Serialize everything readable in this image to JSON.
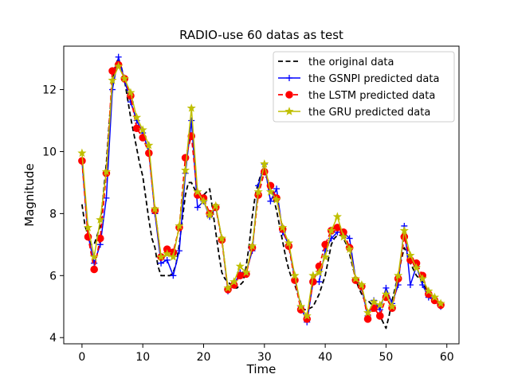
{
  "chart_data": {
    "type": "line",
    "title": "RADIO-use 60 datas as test",
    "xlabel": "Time",
    "ylabel": "Magnitude",
    "xlim": [
      -3,
      62
    ],
    "ylim": [
      3.8,
      13.4
    ],
    "xticks": [
      0,
      10,
      20,
      30,
      40,
      50,
      60
    ],
    "yticks": [
      4,
      6,
      8,
      10,
      12
    ],
    "grid": false,
    "legend_position": "upper-right",
    "series": [
      {
        "name": "the original data",
        "color": "#000000",
        "line_style": "dashed",
        "marker": "none",
        "x": [
          0,
          0.5,
          1,
          1.5,
          2,
          2.5,
          3,
          3.5,
          4,
          4.5,
          5,
          5.5,
          6,
          6.5,
          7,
          7.5,
          8,
          8.5,
          9,
          9.5,
          10,
          10.5,
          11,
          11.5,
          12,
          12.5,
          13,
          13.5,
          14,
          14.5,
          15,
          15.5,
          16,
          16.5,
          17,
          17.5,
          18,
          18.5,
          19,
          19.5,
          20,
          20.5,
          21,
          21.5,
          22,
          22.5,
          23,
          23.5,
          24,
          24.5,
          25,
          25.5,
          26,
          26.5,
          27,
          27.5,
          28,
          28.5,
          29,
          29.5,
          30,
          30.5,
          31,
          31.5,
          32,
          32.5,
          33,
          33.5,
          34,
          34.5,
          35,
          35.5,
          36,
          36.5,
          37,
          37.5,
          38,
          38.5,
          39,
          39.5,
          40,
          40.5,
          41,
          41.5,
          42,
          42.5,
          43,
          43.5,
          44,
          44.5,
          45,
          45.5,
          46,
          46.5,
          47,
          47.5,
          48,
          48.5,
          49,
          49.5,
          50,
          50.5,
          51,
          51.5,
          52,
          52.5,
          53,
          53.5,
          54,
          54.5,
          55,
          55.5,
          56,
          56.5,
          57,
          57.5,
          58,
          58.5,
          59
        ],
        "y": [
          8.3,
          7.6,
          7.3,
          7.0,
          7.0,
          7.3,
          7.6,
          8.6,
          9.6,
          11.0,
          12.2,
          12.8,
          13.0,
          12.7,
          12.3,
          11.7,
          11.1,
          10.6,
          10.1,
          9.6,
          9.2,
          8.5,
          7.8,
          7.2,
          6.9,
          6.3,
          6.0,
          6.0,
          6.0,
          6.0,
          6.1,
          6.4,
          7.0,
          7.8,
          8.6,
          9.0,
          9.0,
          8.8,
          8.6,
          8.6,
          8.6,
          8.7,
          8.8,
          8.1,
          7.4,
          6.7,
          6.1,
          5.9,
          5.8,
          5.7,
          5.6,
          5.6,
          5.7,
          5.8,
          6.3,
          7.0,
          7.9,
          8.6,
          9.0,
          9.3,
          9.3,
          9.1,
          8.9,
          8.5,
          8.1,
          7.6,
          7.1,
          6.6,
          6.2,
          5.9,
          5.7,
          5.4,
          5.1,
          4.9,
          4.9,
          4.95,
          5.0,
          5.2,
          5.4,
          5.7,
          6.0,
          6.5,
          7.0,
          7.2,
          7.3,
          7.3,
          7.2,
          7.0,
          6.7,
          6.3,
          5.9,
          5.6,
          5.4,
          5.2,
          5.2,
          5.1,
          5.0,
          4.9,
          4.7,
          4.5,
          4.3,
          4.7,
          5.2,
          5.6,
          6.0,
          6.5,
          6.9,
          6.7,
          6.4,
          6.2,
          6.0,
          5.9,
          5.8,
          5.6,
          5.4,
          5.3,
          5.2,
          5.2,
          5.1
        ]
      },
      {
        "name": "the GSNPI predicted data",
        "color": "#0000ff",
        "line_style": "solid",
        "marker": "plus",
        "x": [
          0,
          1,
          2,
          3,
          4,
          5,
          6,
          7,
          8,
          9,
          10,
          11,
          12,
          13,
          14,
          15,
          16,
          17,
          18,
          19,
          20,
          21,
          22,
          23,
          24,
          25,
          26,
          27,
          28,
          29,
          30,
          31,
          32,
          33,
          34,
          35,
          36,
          37,
          38,
          39,
          40,
          41,
          42,
          43,
          44,
          45,
          46,
          47,
          48,
          49,
          50,
          51,
          52,
          53,
          54,
          55,
          56,
          57,
          58,
          59
        ],
        "y": [
          9.7,
          7.3,
          6.4,
          7.0,
          8.5,
          12.0,
          13.05,
          12.3,
          11.6,
          11.0,
          10.6,
          10.0,
          8.0,
          6.4,
          6.5,
          6.0,
          6.8,
          9.3,
          11.0,
          8.2,
          8.4,
          7.9,
          8.2,
          7.2,
          5.5,
          5.7,
          6.1,
          6.1,
          6.8,
          8.9,
          9.6,
          8.4,
          8.8,
          7.4,
          7.0,
          5.9,
          5.0,
          4.5,
          5.8,
          5.8,
          6.8,
          7.2,
          7.4,
          7.4,
          7.2,
          5.9,
          5.6,
          4.7,
          5.2,
          4.9,
          5.6,
          5.1,
          5.7,
          7.6,
          5.7,
          6.3,
          5.7,
          5.3,
          5.2,
          5.0
        ]
      },
      {
        "name": "the LSTM predicted data",
        "color": "#ff0000",
        "line_style": "dashed",
        "marker": "circle",
        "x": [
          0,
          1,
          2,
          3,
          4,
          5,
          6,
          7,
          8,
          9,
          10,
          11,
          12,
          13,
          14,
          15,
          16,
          17,
          18,
          19,
          20,
          21,
          22,
          23,
          24,
          25,
          26,
          27,
          28,
          29,
          30,
          31,
          32,
          33,
          34,
          35,
          36,
          37,
          38,
          39,
          40,
          41,
          42,
          43,
          44,
          45,
          46,
          47,
          48,
          49,
          50,
          51,
          52,
          53,
          54,
          55,
          56,
          57,
          58,
          59
        ],
        "y": [
          9.7,
          7.25,
          6.2,
          7.2,
          9.3,
          12.6,
          12.8,
          12.35,
          11.8,
          10.75,
          10.45,
          9.95,
          8.1,
          6.6,
          6.85,
          6.75,
          7.55,
          9.8,
          10.5,
          8.6,
          8.5,
          8.0,
          8.2,
          7.15,
          5.55,
          5.7,
          6.0,
          6.05,
          6.9,
          8.6,
          9.35,
          8.9,
          8.5,
          7.5,
          6.95,
          5.85,
          4.9,
          4.6,
          5.8,
          6.3,
          7.0,
          7.45,
          7.55,
          7.4,
          6.9,
          5.85,
          5.65,
          4.6,
          4.95,
          4.7,
          5.3,
          4.95,
          5.9,
          7.25,
          6.5,
          6.4,
          6.0,
          5.4,
          5.2,
          5.05
        ]
      },
      {
        "name": "the GRU predicted data",
        "color": "#bfbf00",
        "line_style": "solid",
        "marker": "star",
        "x": [
          0,
          1,
          2,
          3,
          4,
          5,
          6,
          7,
          8,
          9,
          10,
          11,
          12,
          13,
          14,
          15,
          16,
          17,
          18,
          19,
          20,
          21,
          22,
          23,
          24,
          25,
          26,
          27,
          28,
          29,
          30,
          31,
          32,
          33,
          34,
          35,
          36,
          37,
          38,
          39,
          40,
          41,
          42,
          43,
          44,
          45,
          46,
          47,
          48,
          49,
          50,
          51,
          52,
          53,
          54,
          55,
          56,
          57,
          58,
          59
        ],
        "y": [
          9.95,
          7.55,
          6.6,
          7.8,
          9.35,
          12.3,
          12.75,
          12.35,
          11.9,
          11.1,
          10.7,
          10.2,
          8.15,
          6.6,
          6.7,
          6.6,
          7.6,
          9.4,
          11.4,
          8.7,
          8.4,
          7.95,
          8.25,
          7.2,
          5.6,
          5.8,
          6.3,
          6.1,
          6.95,
          8.7,
          9.6,
          8.7,
          8.45,
          7.55,
          7.05,
          6.0,
          5.0,
          4.7,
          6.0,
          6.1,
          6.6,
          7.45,
          7.9,
          7.25,
          6.85,
          5.9,
          5.7,
          4.8,
          5.15,
          5.05,
          5.4,
          5.0,
          6.0,
          7.45,
          6.65,
          6.25,
          5.9,
          5.5,
          5.3,
          5.1
        ]
      }
    ]
  }
}
